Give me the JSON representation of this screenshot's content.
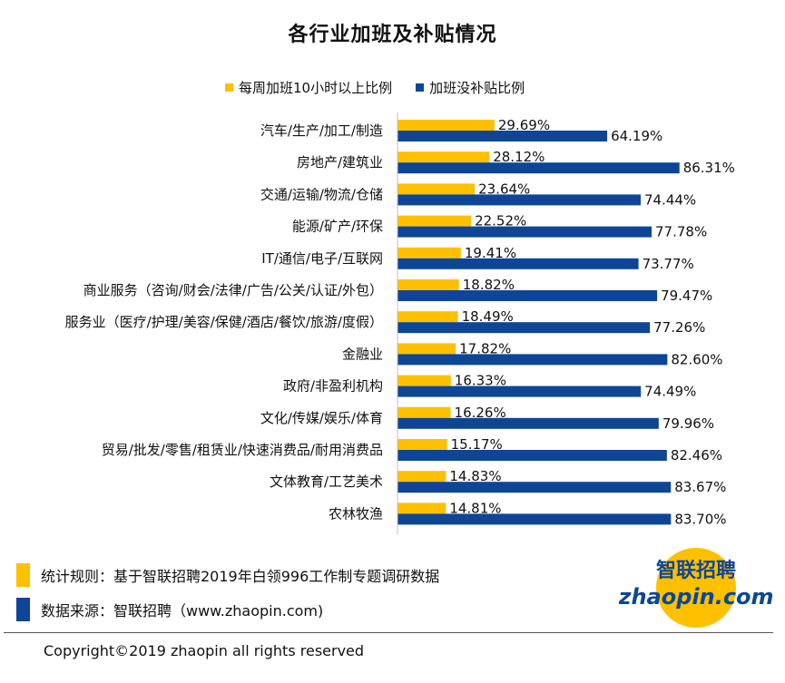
{
  "chart_data": {
    "type": "bar",
    "orientation": "horizontal",
    "title": "各行业加班及补贴情况",
    "categories": [
      "汽车/生产/加工/制造",
      "房地产/建筑业",
      "交通/运输/物流/仓储",
      "能源/矿产/环保",
      "IT/通信/电子/互联网",
      "商业服务（咨询/财会/法律/广告/公关/认证/外包）",
      "服务业（医疗/护理/美容/保健/酒店/餐饮/旅游/度假）",
      "金融业",
      "政府/非盈利机构",
      "文化/传媒/娱乐/体育",
      "贸易/批发/零售/租赁业/快速消费品/耐用消费品",
      "文体教育/工艺美术",
      "农林牧渔"
    ],
    "series": [
      {
        "name": "每周加班10小时以上比例",
        "color": "#FFC000",
        "values": [
          29.69,
          28.12,
          23.64,
          22.52,
          19.41,
          18.82,
          18.49,
          17.82,
          16.33,
          16.26,
          15.17,
          14.83,
          14.81
        ],
        "labels": [
          "29.69%",
          "28.12%",
          "23.64%",
          "22.52%",
          "19.41%",
          "18.82%",
          "18.49%",
          "17.82%",
          "16.33%",
          "16.26%",
          "15.17%",
          "14.83%",
          "14.81%"
        ]
      },
      {
        "name": "加班没补贴比例",
        "color": "#0E4695",
        "values": [
          64.19,
          86.31,
          74.44,
          77.78,
          73.77,
          79.47,
          77.26,
          82.6,
          74.49,
          79.96,
          82.46,
          83.67,
          83.7
        ],
        "labels": [
          "64.19%",
          "86.31%",
          "74.44%",
          "77.78%",
          "73.77%",
          "79.47%",
          "77.26%",
          "82.60%",
          "74.49%",
          "79.96%",
          "82.46%",
          "83.67%",
          "83.70%"
        ]
      }
    ],
    "xlim": [
      0,
      100
    ],
    "grid": false,
    "legend_position": "top"
  },
  "notes": {
    "rule": {
      "text": "统计规则：基于智联招聘2019年白领996工作制专题调研数据",
      "color": "#FFC000"
    },
    "source": {
      "text": "数据来源：智联招聘（www.zhaopin.com)",
      "color": "#0E4695"
    }
  },
  "copyright": "Copyright©2019 zhaopin all rights reserved",
  "logo": {
    "top_text": "智联招聘",
    "bottom_text": "zhaopin.com"
  }
}
